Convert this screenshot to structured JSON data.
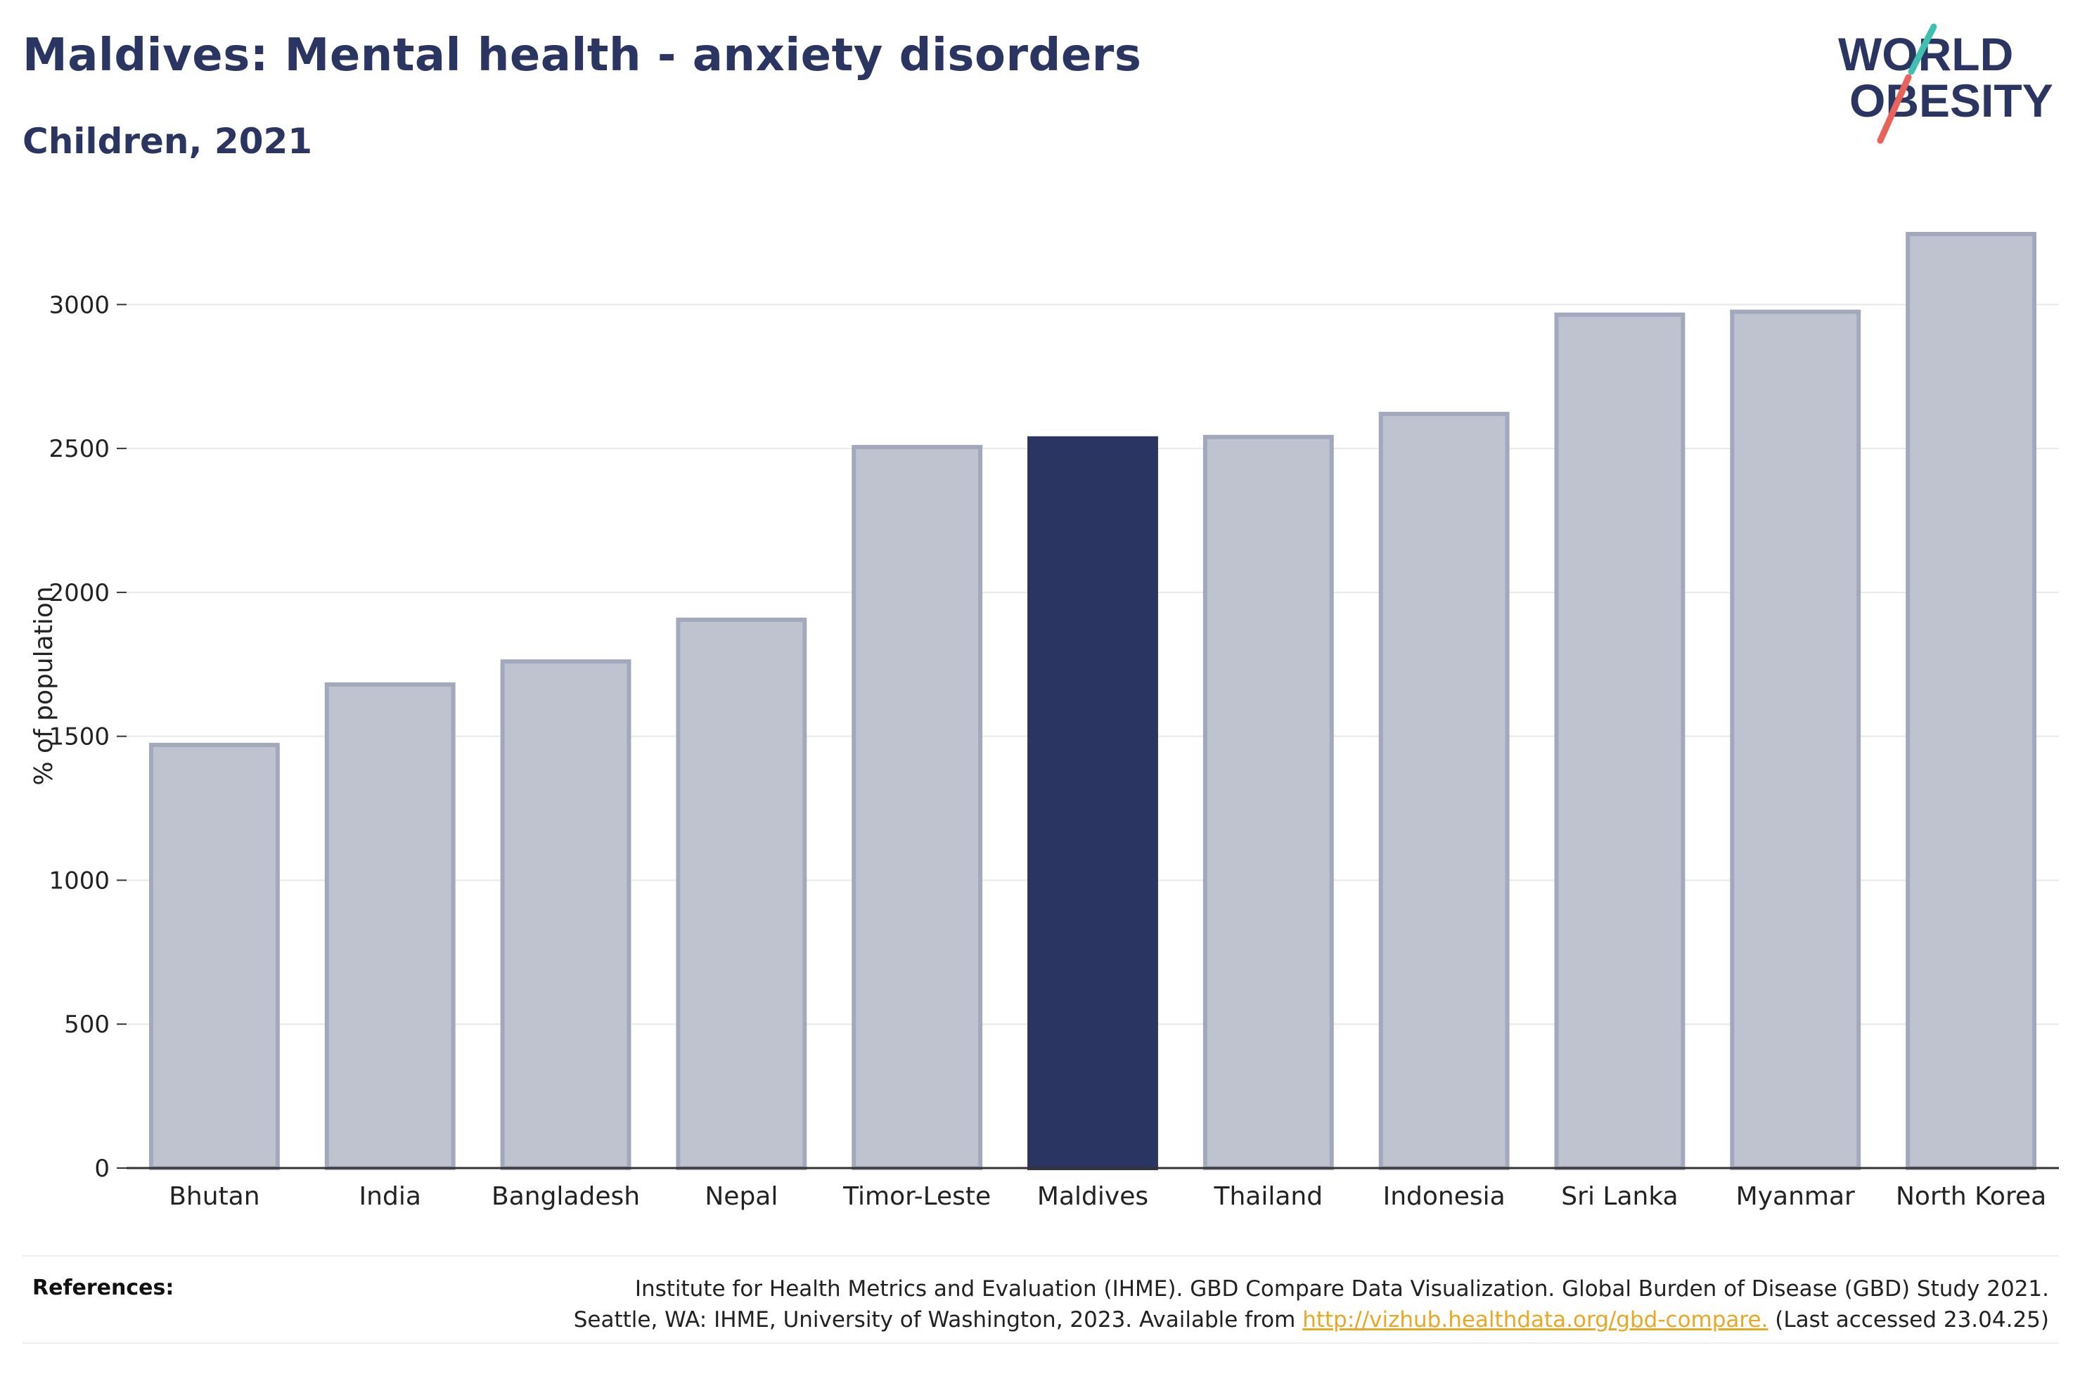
{
  "header": {
    "title": "Maldives: Mental health - anxiety disorders",
    "subtitle": "Children, 2021"
  },
  "logo": {
    "line1": "WORLD",
    "line2": "OBESITY",
    "text_color": "#2b3562",
    "slash_colors": [
      "#3fbfb0",
      "#e8635a"
    ]
  },
  "chart_data": {
    "type": "bar",
    "categories": [
      "Bhutan",
      "India",
      "Bangladesh",
      "Nepal",
      "Timor-Leste",
      "Maldives",
      "Thailand",
      "Indonesia",
      "Sri Lanka",
      "Myanmar",
      "North Korea"
    ],
    "values": [
      1470,
      1680,
      1760,
      1905,
      2505,
      2535,
      2540,
      2620,
      2965,
      2975,
      3245
    ],
    "highlight": "Maldives",
    "ylabel": "% of population",
    "xlabel": "",
    "ylim": [
      0,
      3350
    ],
    "yticks": [
      0,
      500,
      1000,
      1500,
      2000,
      2500,
      3000
    ],
    "grid": true,
    "colors": {
      "bar": "#bfc3cf",
      "bar_outline": "#a3a9bd",
      "highlight": "#2b3562",
      "grid": "#e8e8e8",
      "axis": "#333333"
    }
  },
  "references": {
    "label": "References:",
    "line1": "Institute for Health Metrics and Evaluation (IHME). GBD Compare Data Visualization. Global Burden of Disease (GBD) Study 2021.",
    "line2_prefix": "Seattle, WA: IHME, University of Washington, 2023. Available from",
    "link": "http://vizhub.healthdata.org/gbd-compare.",
    "line2_suffix": "(Last accessed 23.04.25)"
  }
}
